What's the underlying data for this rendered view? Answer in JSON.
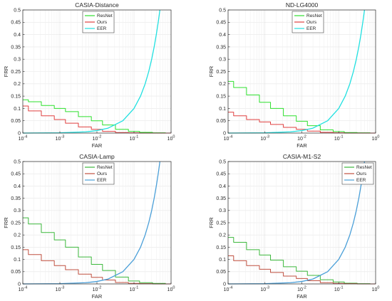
{
  "chart_data": [
    {
      "type": "line",
      "title": "CASIA-Distance",
      "xlabel": "FAR",
      "ylabel": "FRR",
      "xscale": "log",
      "xlim": [
        0.0001,
        1
      ],
      "ylim": [
        0,
        0.5
      ],
      "yticks": [
        "0",
        "0.05",
        "0.1",
        "0.15",
        "0.2",
        "0.25",
        "0.3",
        "0.35",
        "0.4",
        "0.45",
        "0.5"
      ],
      "xticks": [
        {
          "base": "10",
          "exp": "-4"
        },
        {
          "base": "10",
          "exp": "-3"
        },
        {
          "base": "10",
          "exp": "-2"
        },
        {
          "base": "10",
          "exp": "-1"
        },
        {
          "base": "10",
          "exp": "0"
        }
      ],
      "grid": true,
      "legend": "top-center",
      "series": [
        {
          "name": "ResNet",
          "color": "#2ee02e",
          "x": [
            0.0001,
            0.0002,
            0.0005,
            0.001,
            0.002,
            0.005,
            0.01,
            0.02,
            0.05,
            0.1,
            0.2,
            0.5,
            1
          ],
          "y": [
            0.135,
            0.127,
            0.112,
            0.1,
            0.087,
            0.067,
            0.05,
            0.033,
            0.015,
            0.007,
            0.003,
            0.001,
            0
          ]
        },
        {
          "name": "Ours",
          "color": "#e04040",
          "x": [
            0.0001,
            0.0002,
            0.0005,
            0.001,
            0.002,
            0.005,
            0.01,
            0.02,
            0.05,
            0.1,
            0.2,
            0.5,
            1
          ],
          "y": [
            0.11,
            0.09,
            0.07,
            0.055,
            0.04,
            0.025,
            0.015,
            0.007,
            0.002,
            0.001,
            0,
            0,
            0
          ]
        },
        {
          "name": "EER",
          "color": "#20e0e0",
          "x": [
            0.0001,
            0.001,
            0.005,
            0.01,
            0.02,
            0.05,
            0.1,
            0.15,
            0.2,
            0.25,
            0.3,
            0.35,
            0.4,
            0.45,
            0.5
          ],
          "y": [
            0.0001,
            0.001,
            0.005,
            0.01,
            0.02,
            0.05,
            0.1,
            0.15,
            0.2,
            0.25,
            0.3,
            0.35,
            0.4,
            0.45,
            0.5
          ]
        }
      ]
    },
    {
      "type": "line",
      "title": "ND-LG4000",
      "xlabel": "FAR",
      "ylabel": "FRR",
      "xscale": "log",
      "xlim": [
        0.0001,
        1
      ],
      "ylim": [
        0,
        0.5
      ],
      "yticks": [
        "0",
        "0.05",
        "0.1",
        "0.15",
        "0.2",
        "0.25",
        "0.3",
        "0.35",
        "0.4",
        "0.45",
        "0.5"
      ],
      "xticks": [
        {
          "base": "10",
          "exp": "-4"
        },
        {
          "base": "10",
          "exp": "-3"
        },
        {
          "base": "10",
          "exp": "-2"
        },
        {
          "base": "10",
          "exp": "-1"
        },
        {
          "base": "10",
          "exp": "0"
        }
      ],
      "grid": true,
      "legend": "top-center",
      "series": [
        {
          "name": "ResNet",
          "color": "#2ee02e",
          "x": [
            0.0001,
            0.0002,
            0.0005,
            0.001,
            0.002,
            0.005,
            0.01,
            0.02,
            0.05,
            0.1,
            0.2,
            0.5,
            1
          ],
          "y": [
            0.21,
            0.185,
            0.155,
            0.125,
            0.1,
            0.07,
            0.048,
            0.03,
            0.013,
            0.006,
            0.002,
            0.001,
            0
          ]
        },
        {
          "name": "Ours",
          "color": "#e04040",
          "x": [
            0.0001,
            0.0002,
            0.0005,
            0.001,
            0.002,
            0.005,
            0.01,
            0.02,
            0.05,
            0.1,
            0.2,
            0.5,
            1
          ],
          "y": [
            0.085,
            0.07,
            0.055,
            0.045,
            0.035,
            0.023,
            0.015,
            0.008,
            0.003,
            0.001,
            0,
            0,
            0
          ]
        },
        {
          "name": "EER",
          "color": "#20e0e0",
          "x": [
            0.0001,
            0.001,
            0.005,
            0.01,
            0.02,
            0.05,
            0.1,
            0.15,
            0.2,
            0.25,
            0.3,
            0.35,
            0.4,
            0.45,
            0.5
          ],
          "y": [
            0.0001,
            0.001,
            0.005,
            0.01,
            0.02,
            0.05,
            0.1,
            0.15,
            0.2,
            0.25,
            0.3,
            0.35,
            0.4,
            0.45,
            0.5
          ]
        }
      ]
    },
    {
      "type": "line",
      "title": "CASIA-Lamp",
      "xlabel": "FAR",
      "ylabel": "FRR",
      "xscale": "log",
      "xlim": [
        0.0001,
        1
      ],
      "ylim": [
        0,
        0.5
      ],
      "yticks": [
        "0",
        "0.05",
        "0.1",
        "0.15",
        "0.2",
        "0.25",
        "0.3",
        "0.35",
        "0.4",
        "0.45",
        "0.5"
      ],
      "xticks": [
        {
          "base": "10",
          "exp": "-4"
        },
        {
          "base": "10",
          "exp": "-3"
        },
        {
          "base": "10",
          "exp": "-2"
        },
        {
          "base": "10",
          "exp": "-1"
        },
        {
          "base": "10",
          "exp": "0"
        }
      ],
      "grid": true,
      "legend": "top-center",
      "series": [
        {
          "name": "ResNet",
          "color": "#3cb83c",
          "x": [
            0.0001,
            0.0002,
            0.0005,
            0.001,
            0.002,
            0.005,
            0.01,
            0.02,
            0.05,
            0.1,
            0.2,
            0.5,
            1
          ],
          "y": [
            0.27,
            0.245,
            0.21,
            0.18,
            0.15,
            0.11,
            0.08,
            0.055,
            0.028,
            0.012,
            0.005,
            0.002,
            0
          ]
        },
        {
          "name": "Ours",
          "color": "#c05040",
          "x": [
            0.0001,
            0.0002,
            0.0005,
            0.001,
            0.002,
            0.005,
            0.01,
            0.02,
            0.05,
            0.1,
            0.2,
            0.5,
            1
          ],
          "y": [
            0.14,
            0.12,
            0.095,
            0.075,
            0.058,
            0.04,
            0.027,
            0.016,
            0.006,
            0.002,
            0.001,
            0,
            0
          ]
        },
        {
          "name": "EER",
          "color": "#4a9fd8",
          "x": [
            0.0001,
            0.001,
            0.005,
            0.01,
            0.02,
            0.05,
            0.1,
            0.15,
            0.2,
            0.25,
            0.3,
            0.35,
            0.4,
            0.45,
            0.5
          ],
          "y": [
            0.0001,
            0.001,
            0.005,
            0.01,
            0.02,
            0.05,
            0.1,
            0.15,
            0.2,
            0.25,
            0.3,
            0.35,
            0.4,
            0.45,
            0.5
          ]
        }
      ]
    },
    {
      "type": "line",
      "title": "CASIA-M1-S2",
      "xlabel": "FAR",
      "ylabel": "FRR",
      "xscale": "log",
      "xlim": [
        0.0001,
        1
      ],
      "ylim": [
        0,
        0.5
      ],
      "yticks": [
        "0",
        "0.05",
        "0.1",
        "0.15",
        "0.2",
        "0.25",
        "0.3",
        "0.35",
        "0.4",
        "0.45",
        "0.5"
      ],
      "xticks": [
        {
          "base": "10",
          "exp": "-4"
        },
        {
          "base": "10",
          "exp": "-3"
        },
        {
          "base": "10",
          "exp": "-2"
        },
        {
          "base": "10",
          "exp": "-1"
        },
        {
          "base": "10",
          "exp": "0"
        }
      ],
      "grid": true,
      "legend": "top-right",
      "series": [
        {
          "name": "ResNet",
          "color": "#3cb83c",
          "x": [
            0.0001,
            0.0002,
            0.0005,
            0.001,
            0.002,
            0.005,
            0.01,
            0.02,
            0.05,
            0.1,
            0.2,
            0.5,
            1
          ],
          "y": [
            0.19,
            0.17,
            0.14,
            0.118,
            0.097,
            0.07,
            0.052,
            0.035,
            0.017,
            0.008,
            0.003,
            0.001,
            0
          ]
        },
        {
          "name": "Ours",
          "color": "#c05040",
          "x": [
            0.0001,
            0.0002,
            0.0005,
            0.001,
            0.002,
            0.005,
            0.01,
            0.02,
            0.05,
            0.1,
            0.2,
            0.5,
            1
          ],
          "y": [
            0.115,
            0.095,
            0.075,
            0.06,
            0.047,
            0.032,
            0.022,
            0.013,
            0.005,
            0.002,
            0.001,
            0,
            0
          ]
        },
        {
          "name": "EER",
          "color": "#4a9fd8",
          "x": [
            0.0001,
            0.001,
            0.005,
            0.01,
            0.02,
            0.05,
            0.1,
            0.15,
            0.2,
            0.25,
            0.3,
            0.35,
            0.4,
            0.45,
            0.5
          ],
          "y": [
            0.0001,
            0.001,
            0.005,
            0.01,
            0.02,
            0.05,
            0.1,
            0.15,
            0.2,
            0.25,
            0.3,
            0.35,
            0.4,
            0.45,
            0.5
          ]
        }
      ]
    }
  ]
}
